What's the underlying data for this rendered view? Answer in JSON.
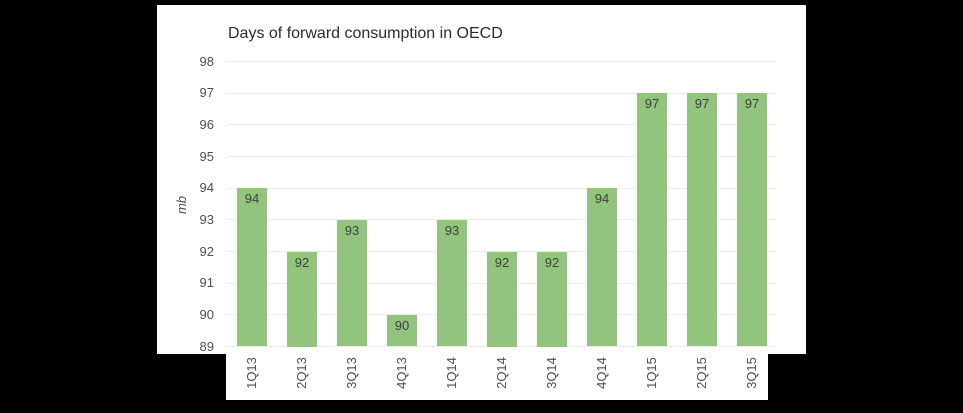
{
  "window": {
    "background": "#000000",
    "panel_background": "#ffffff"
  },
  "chart_data": {
    "type": "bar",
    "title": "Days of forward consumption in OECD",
    "xlabel": "",
    "ylabel": "mb",
    "categories": [
      "1Q13",
      "2Q13",
      "3Q13",
      "4Q13",
      "1Q14",
      "2Q14",
      "3Q14",
      "4Q14",
      "1Q15",
      "2Q15",
      "3Q15"
    ],
    "values": [
      94,
      92,
      93,
      90,
      93,
      92,
      92,
      94,
      97,
      97,
      97
    ],
    "ylim": [
      89,
      98
    ],
    "yticks": [
      89,
      90,
      91,
      92,
      93,
      94,
      95,
      96,
      97,
      98
    ],
    "grid": "horizontal",
    "legend": "none",
    "data_labels": "inside-top",
    "x_tick_rotation": -90,
    "colors": {
      "bar": "#93c47d",
      "title": "#2b2b2b",
      "tick_label": "#4f4f4f",
      "value_label": "#3f3f3f",
      "gridline": "#ededed"
    }
  }
}
